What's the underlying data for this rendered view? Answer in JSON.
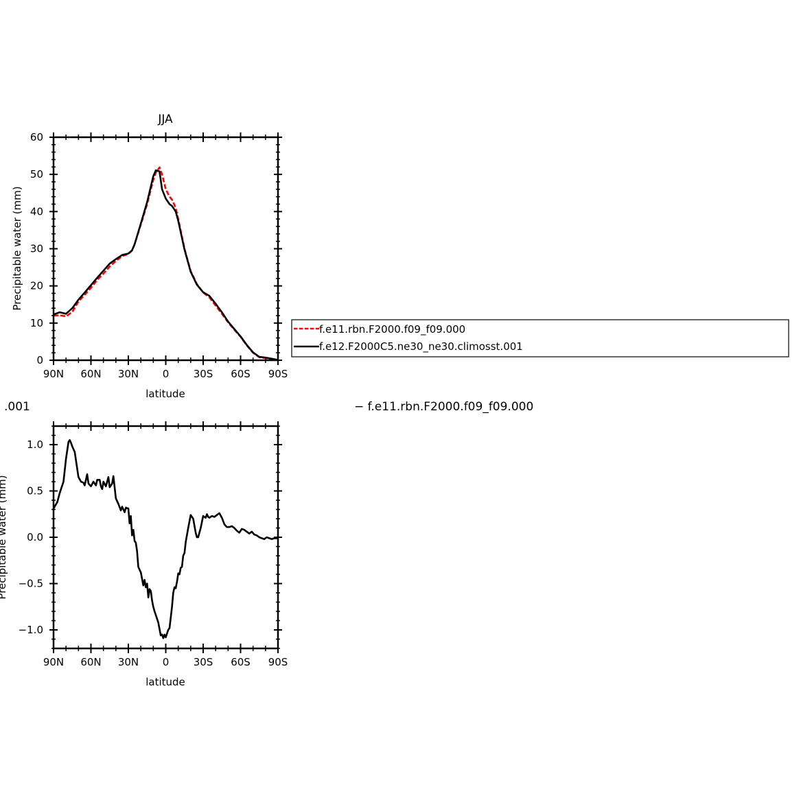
{
  "chart_data": [
    {
      "type": "line",
      "title": "JJA",
      "xlabel": "latitude",
      "ylabel": "Precipitable water (mm)",
      "xlim": [
        90,
        -90
      ],
      "ylim": [
        0,
        60
      ],
      "xticks": [
        {
          "value": 90,
          "label": "90N"
        },
        {
          "value": 60,
          "label": "60N"
        },
        {
          "value": 30,
          "label": "30N"
        },
        {
          "value": 0,
          "label": "0"
        },
        {
          "value": -30,
          "label": "30S"
        },
        {
          "value": -60,
          "label": "60S"
        },
        {
          "value": -90,
          "label": "90S"
        }
      ],
      "yticks": [
        {
          "value": 0,
          "label": "0"
        },
        {
          "value": 10,
          "label": "10"
        },
        {
          "value": 20,
          "label": "20"
        },
        {
          "value": 30,
          "label": "30"
        },
        {
          "value": 40,
          "label": "40"
        },
        {
          "value": 50,
          "label": "50"
        },
        {
          "value": 60,
          "label": "60"
        }
      ],
      "legend_position": "right, outside",
      "series": [
        {
          "name": "f.e11.rbn.F2000.f09_f09.000",
          "color": "#ff0000",
          "dashed": true,
          "x": [
            90,
            85,
            80,
            75,
            70,
            65,
            60,
            55,
            50,
            45,
            40,
            35,
            30,
            27,
            25,
            20,
            15,
            10,
            8,
            5,
            3,
            0,
            -3,
            -5,
            -8,
            -10,
            -15,
            -20,
            -25,
            -30,
            -35,
            -40,
            -45,
            -50,
            -55,
            -60,
            -65,
            -70,
            -75,
            -80,
            -85,
            -90
          ],
          "y": [
            12.0,
            12.1,
            11.8,
            13.0,
            15.8,
            17.6,
            19.5,
            21.6,
            23.3,
            25.2,
            26.7,
            28.0,
            28.6,
            29.5,
            31.2,
            36.5,
            42.0,
            48.5,
            50.5,
            51.9,
            50.0,
            46.0,
            44.0,
            43.2,
            41.0,
            38.0,
            30.0,
            24.0,
            20.5,
            18.2,
            16.9,
            14.7,
            12.5,
            10.2,
            8.2,
            6.3,
            4.0,
            2.0,
            0.8,
            0.6,
            0.3,
            0.1
          ]
        },
        {
          "name": "f.e12.F2000C5.ne30_ne30.climosst.001",
          "color": "#000000",
          "dashed": false,
          "x": [
            90,
            85,
            80,
            75,
            70,
            65,
            60,
            55,
            50,
            45,
            40,
            35,
            30,
            27,
            25,
            20,
            15,
            10,
            8,
            5,
            3,
            0,
            -3,
            -5,
            -8,
            -10,
            -15,
            -20,
            -25,
            -30,
            -35,
            -40,
            -45,
            -50,
            -55,
            -60,
            -65,
            -70,
            -75,
            -80,
            -85,
            -90
          ],
          "y": [
            12.3,
            12.9,
            12.5,
            14.0,
            16.3,
            18.2,
            20.2,
            22.2,
            24.1,
            26.0,
            27.2,
            28.3,
            28.7,
            29.6,
            31.2,
            36.8,
            42.5,
            49.5,
            51.1,
            50.8,
            46.0,
            43.5,
            42.0,
            41.5,
            40.0,
            37.5,
            29.8,
            23.8,
            20.3,
            18.3,
            17.3,
            15.2,
            12.9,
            10.4,
            8.4,
            6.4,
            4.1,
            2.1,
            0.9,
            0.7,
            0.4,
            0.1
          ]
        }
      ]
    },
    {
      "type": "line",
      "title_partial": ".001",
      "title_right_partial": "− f.e11.rbn.F2000.f09_f09.000",
      "xlabel": "latitude",
      "ylabel": "Precipitable water (mm)",
      "xlim": [
        90,
        -90
      ],
      "ylim": [
        -1.2,
        1.2
      ],
      "xticks": [
        {
          "value": 90,
          "label": "90N"
        },
        {
          "value": 60,
          "label": "60N"
        },
        {
          "value": 30,
          "label": "30N"
        },
        {
          "value": 0,
          "label": "0"
        },
        {
          "value": -30,
          "label": "30S"
        },
        {
          "value": -60,
          "label": "60S"
        },
        {
          "value": -90,
          "label": "90S"
        }
      ],
      "yticks": [
        {
          "value": -1.0,
          "label": "−1.0"
        },
        {
          "value": -0.5,
          "label": "−0.5"
        },
        {
          "value": 0.0,
          "label": "0.0"
        },
        {
          "value": 0.5,
          "label": "0.5"
        },
        {
          "value": 1.0,
          "label": "1.0"
        }
      ],
      "series": [
        {
          "color": "#000000",
          "x": [
            90,
            87,
            85,
            82,
            80,
            78,
            77,
            76,
            75,
            73,
            72,
            70,
            68,
            66,
            65,
            63,
            62,
            60,
            58,
            56,
            55,
            53,
            52,
            51,
            50,
            48,
            47,
            46,
            45,
            43,
            42,
            40,
            38,
            36,
            35,
            33,
            32,
            30,
            29,
            28,
            27,
            26,
            25,
            24,
            23,
            22,
            20,
            18,
            17,
            16,
            15,
            14,
            13,
            12,
            11,
            10,
            9,
            8,
            6,
            4,
            3,
            2,
            1,
            0,
            -1,
            -2,
            -3,
            -5,
            -6,
            -7,
            -8,
            -9,
            -10,
            -11,
            -12,
            -13,
            -14,
            -15,
            -16,
            -18,
            -20,
            -22,
            -24,
            -25,
            -26,
            -28,
            -30,
            -32,
            -33,
            -34,
            -35,
            -37,
            -39,
            -41,
            -43,
            -45,
            -47,
            -49,
            -51,
            -53,
            -55,
            -57,
            -59,
            -61,
            -63,
            -65,
            -67,
            -69,
            -71,
            -73,
            -75,
            -77,
            -79,
            -81,
            -83,
            -85,
            -87,
            -89,
            -90
          ],
          "y": [
            0.31,
            0.38,
            0.48,
            0.6,
            0.85,
            1.03,
            1.05,
            1.02,
            0.98,
            0.92,
            0.83,
            0.65,
            0.6,
            0.59,
            0.56,
            0.68,
            0.58,
            0.55,
            0.6,
            0.56,
            0.62,
            0.62,
            0.55,
            0.52,
            0.6,
            0.55,
            0.6,
            0.65,
            0.54,
            0.58,
            0.66,
            0.42,
            0.36,
            0.29,
            0.33,
            0.27,
            0.32,
            0.31,
            0.15,
            0.23,
            0.02,
            0.08,
            -0.04,
            -0.06,
            -0.15,
            -0.32,
            -0.38,
            -0.52,
            -0.46,
            -0.54,
            -0.5,
            -0.65,
            -0.56,
            -0.58,
            -0.68,
            -0.75,
            -0.8,
            -0.84,
            -0.92,
            -1.06,
            -1.05,
            -1.09,
            -1.05,
            -1.08,
            -1.04,
            -1.0,
            -0.98,
            -0.75,
            -0.6,
            -0.54,
            -0.55,
            -0.48,
            -0.39,
            -0.4,
            -0.33,
            -0.32,
            -0.2,
            -0.17,
            -0.05,
            0.1,
            0.24,
            0.2,
            0.05,
            0.0,
            0.0,
            0.1,
            0.23,
            0.21,
            0.25,
            0.22,
            0.21,
            0.23,
            0.22,
            0.24,
            0.26,
            0.21,
            0.14,
            0.11,
            0.11,
            0.12,
            0.1,
            0.07,
            0.05,
            0.09,
            0.08,
            0.06,
            0.04,
            0.06,
            0.03,
            0.02,
            0.0,
            -0.01,
            -0.02,
            0.0,
            -0.01,
            -0.02,
            -0.01,
            -0.01,
            -0.01
          ]
        }
      ]
    }
  ]
}
